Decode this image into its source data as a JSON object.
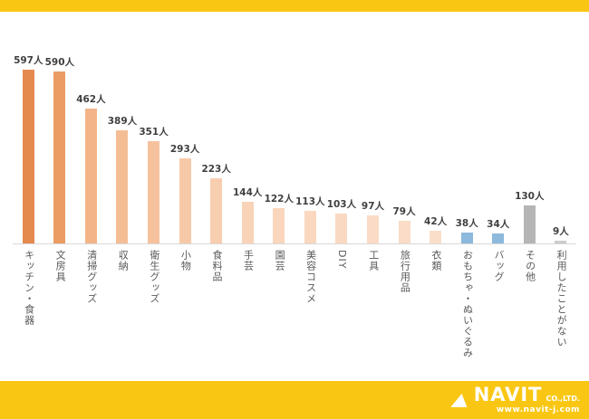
{
  "page": {
    "accent_yellow": "#f9c713",
    "baseline_color": "#d8d8d8"
  },
  "chart_data": {
    "type": "bar",
    "title": "",
    "xlabel": "",
    "ylabel": "",
    "ylim": [
      0,
      600
    ],
    "grid": false,
    "legend": "none",
    "value_suffix": "人",
    "categories": [
      "キッチン・食器",
      "文房具",
      "清掃グッズ",
      "収納",
      "衛生グッズ",
      "小物",
      "食料品",
      "手芸",
      "園芸",
      "美容コスメ",
      "DIY",
      "工具",
      "旅行用品",
      "衣類",
      "おもちゃ・ぬいぐるみ",
      "バッグ",
      "その他",
      "利用したことがない"
    ],
    "values": [
      597,
      590,
      462,
      389,
      351,
      293,
      223,
      144,
      122,
      113,
      103,
      97,
      79,
      42,
      38,
      34,
      130,
      9
    ],
    "value_labels": [
      "597人",
      "590人",
      "462人",
      "389人",
      "351人",
      "293人",
      "223人",
      "144人",
      "122人",
      "113人",
      "103人",
      "97人",
      "79人",
      "42人",
      "38人",
      "34人",
      "130人",
      "9人"
    ],
    "bar_colors": [
      "#e58a4e",
      "#eb9c63",
      "#f3b489",
      "#f5bd95",
      "#f6c29e",
      "#f7c9a8",
      "#f8ceb0",
      "#f9d3b8",
      "#f9d6bc",
      "#fad8c0",
      "#fad9c2",
      "#fbdbc5",
      "#fbdcc7",
      "#fbdeca",
      "#8cb9dc",
      "#8cb9dc",
      "#b5b5b5",
      "#cccccc"
    ]
  },
  "footer": {
    "brand": "NAVIT",
    "company_suffix": "CO.,LTD.",
    "url": "www.navit-j.com"
  }
}
